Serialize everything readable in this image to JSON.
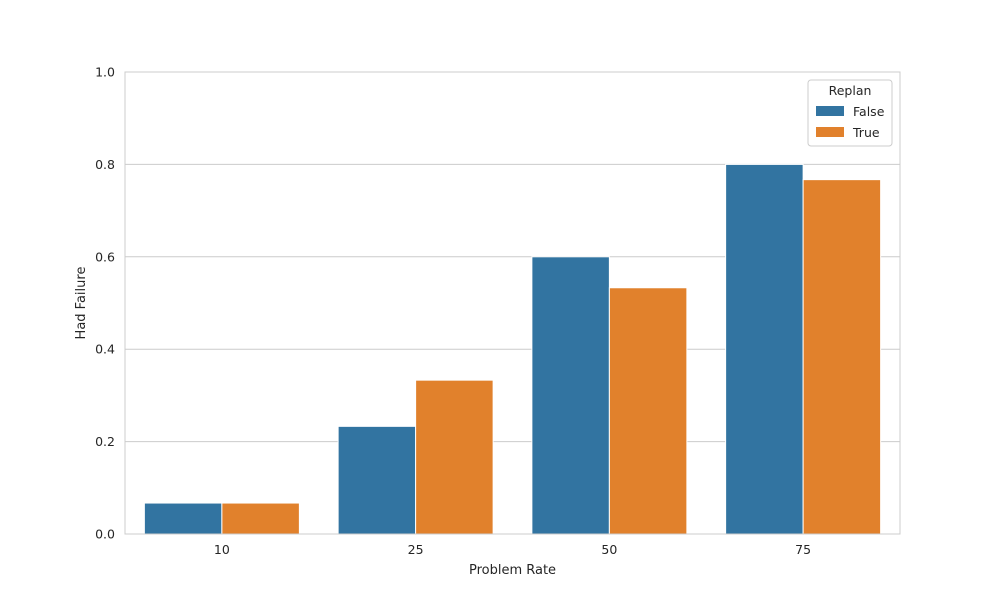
{
  "chart_data": {
    "type": "bar",
    "title": "",
    "xlabel": "Problem Rate",
    "ylabel": "Had Failure",
    "categories": [
      "10",
      "25",
      "50",
      "75"
    ],
    "ylim": [
      0,
      1.0
    ],
    "yticks": [
      "0.0",
      "0.2",
      "0.4",
      "0.6",
      "0.8",
      "1.0"
    ],
    "grid": true,
    "legend": {
      "title": "Replan",
      "placement": "top-right"
    },
    "series": [
      {
        "name": "False",
        "color": "#3274a1",
        "values": [
          0.067,
          0.233,
          0.6,
          0.8
        ]
      },
      {
        "name": "True",
        "color": "#e1812c",
        "values": [
          0.067,
          0.333,
          0.533,
          0.767
        ]
      }
    ]
  }
}
